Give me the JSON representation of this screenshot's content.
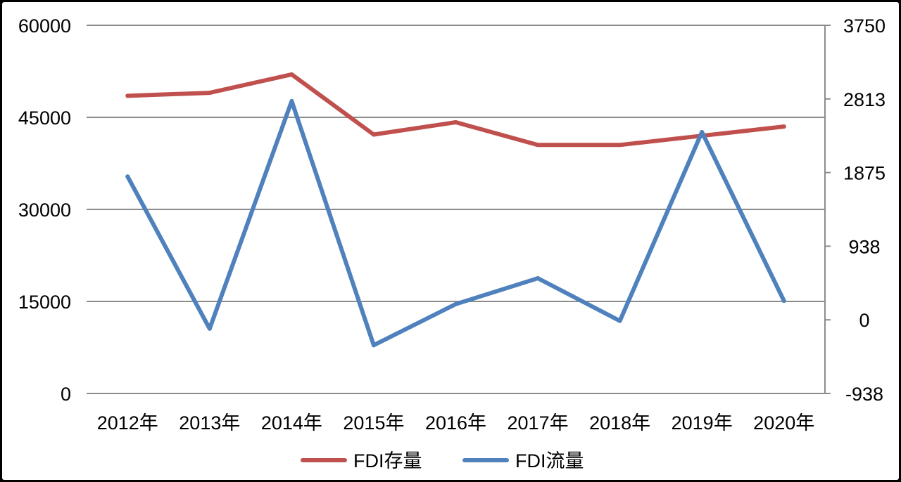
{
  "chart_data": {
    "type": "line",
    "categories": [
      "2012年",
      "2013年",
      "2014年",
      "2015年",
      "2016年",
      "2017年",
      "2018年",
      "2019年",
      "2020年"
    ],
    "series": [
      {
        "name": "FDI存量",
        "axis": "left",
        "color": "#c0504d",
        "values": [
          48500,
          49000,
          52000,
          42200,
          44200,
          40500,
          40500,
          42000,
          43500
        ]
      },
      {
        "name": "FDI流量",
        "axis": "right",
        "color": "#4f81bd",
        "values": [
          1824,
          -113,
          2785,
          -323,
          200,
          529,
          -14,
          2390,
          242
        ]
      }
    ],
    "y_left": {
      "min": 0,
      "max": 60000,
      "ticks": [
        "60000",
        "45000",
        "30000",
        "15000",
        "0"
      ]
    },
    "y_right": {
      "min": -938,
      "max": 3750,
      "ticks": [
        "3750",
        "2813",
        "1875",
        "938",
        "0",
        "-938"
      ]
    },
    "grid": true,
    "legend": "bottom"
  }
}
